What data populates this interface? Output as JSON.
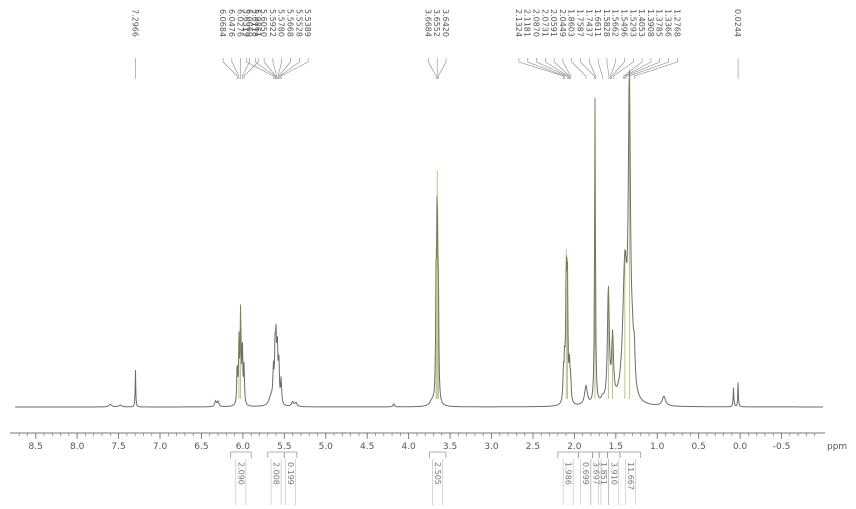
{
  "chart_data": {
    "type": "line",
    "title": "",
    "xlabel": "",
    "ylabel": "",
    "x_unit": "ppm",
    "xlim": [
      8.75,
      -1.0
    ],
    "x_reversed": true,
    "grid": false,
    "ticks": [
      8.5,
      8.0,
      7.5,
      7.0,
      6.5,
      6.0,
      5.5,
      5.0,
      4.5,
      4.0,
      3.5,
      3.0,
      2.5,
      2.0,
      1.5,
      1.0,
      0.5,
      0.0,
      -0.5
    ],
    "tick_labels": [
      "8.5",
      "8.0",
      "7.5",
      "7.0",
      "6.5",
      "6.0",
      "5.5",
      "5.0",
      "4.5",
      "4.0",
      "3.5",
      "3.0",
      "2.5",
      "2.0",
      "1.5",
      "1.0",
      "0.5",
      "0.0",
      "-0.5"
    ],
    "peak_labels": [
      {
        "group": "a",
        "values": [
          "7.2966"
        ]
      },
      {
        "group": "b",
        "values": [
          "6.0684",
          "6.0476",
          "6.0276",
          "6.0069",
          "5.9861"
        ]
      },
      {
        "group": "c",
        "values": [
          "5.6319",
          "5.6118",
          "5.6050",
          "5.5922",
          "5.5780",
          "5.5668",
          "5.5528",
          "5.5389"
        ]
      },
      {
        "group": "d",
        "values": [
          "3.6684",
          "3.6552",
          "3.6420"
        ]
      },
      {
        "group": "e",
        "values": [
          "2.1324",
          "2.1181",
          "2.0870",
          "2.0731",
          "2.0591",
          "2.0449",
          "1.8603",
          "1.7587",
          "1.7437",
          "1.6611",
          "1.5828",
          "1.5662",
          "1.5496",
          "1.5293",
          "1.4053",
          "1.3908",
          "1.3785",
          "1.3366",
          "1.2768"
        ]
      },
      {
        "group": "f",
        "values": [
          "0.0244"
        ]
      }
    ],
    "integrals": [
      {
        "from": 6.15,
        "to": 5.9,
        "value": "2.090"
      },
      {
        "from": 5.7,
        "to": 5.5,
        "value": "2.008"
      },
      {
        "from": 5.5,
        "to": 5.35,
        "value": "0.199"
      },
      {
        "from": 3.75,
        "to": 3.55,
        "value": "2.505"
      },
      {
        "from": 2.2,
        "to": 1.95,
        "value": "1.986"
      },
      {
        "from": 1.95,
        "to": 1.78,
        "value": "0.699"
      },
      {
        "from": 1.78,
        "to": 1.7,
        "value": "3.697"
      },
      {
        "from": 1.7,
        "to": 1.6,
        "value": "1.851"
      },
      {
        "from": 1.6,
        "to": 1.45,
        "value": "3.910"
      },
      {
        "from": 1.45,
        "to": 1.2,
        "value": "11.667"
      }
    ],
    "peaks": [
      {
        "shift": 7.6,
        "height": 0.008,
        "width": 0.02
      },
      {
        "shift": 7.48,
        "height": 0.006,
        "width": 0.02
      },
      {
        "shift": 7.2966,
        "height": 0.12,
        "width": 0.004
      },
      {
        "shift": 6.33,
        "height": 0.018,
        "width": 0.012
      },
      {
        "shift": 6.3,
        "height": 0.016,
        "width": 0.012
      },
      {
        "shift": 6.0684,
        "height": 0.13,
        "width": 0.006
      },
      {
        "shift": 6.0476,
        "height": 0.2,
        "width": 0.006
      },
      {
        "shift": 6.0276,
        "height": 0.3,
        "width": 0.006
      },
      {
        "shift": 6.0069,
        "height": 0.19,
        "width": 0.006
      },
      {
        "shift": 5.9861,
        "height": 0.12,
        "width": 0.006
      },
      {
        "shift": 5.66,
        "height": 0.03,
        "width": 0.03
      },
      {
        "shift": 5.6319,
        "height": 0.1,
        "width": 0.007
      },
      {
        "shift": 5.6118,
        "height": 0.16,
        "width": 0.007
      },
      {
        "shift": 5.6005,
        "height": 0.17,
        "width": 0.007
      },
      {
        "shift": 5.5851,
        "height": 0.18,
        "width": 0.007
      },
      {
        "shift": 5.5668,
        "height": 0.14,
        "width": 0.007
      },
      {
        "shift": 5.5389,
        "height": 0.08,
        "width": 0.007
      },
      {
        "shift": 5.4,
        "height": 0.015,
        "width": 0.015
      },
      {
        "shift": 5.36,
        "height": 0.012,
        "width": 0.015
      },
      {
        "shift": 4.18,
        "height": 0.01,
        "width": 0.01
      },
      {
        "shift": 3.72,
        "height": 0.015,
        "width": 0.03
      },
      {
        "shift": 3.6684,
        "height": 0.38,
        "width": 0.006
      },
      {
        "shift": 3.6552,
        "height": 0.63,
        "width": 0.006
      },
      {
        "shift": 3.642,
        "height": 0.36,
        "width": 0.006
      },
      {
        "shift": 2.1324,
        "height": 0.09,
        "width": 0.007
      },
      {
        "shift": 2.1181,
        "height": 0.12,
        "width": 0.007
      },
      {
        "shift": 2.0981,
        "height": 0.41,
        "width": 0.007
      },
      {
        "shift": 2.0843,
        "height": 0.38,
        "width": 0.007
      },
      {
        "shift": 2.0591,
        "height": 0.11,
        "width": 0.007
      },
      {
        "shift": 2.0449,
        "height": 0.07,
        "width": 0.007
      },
      {
        "shift": 1.8603,
        "height": 0.06,
        "width": 0.02
      },
      {
        "shift": 1.7512,
        "height": 0.97,
        "width": 0.006
      },
      {
        "shift": 1.6611,
        "height": 0.015,
        "width": 0.02
      },
      {
        "shift": 1.59,
        "height": 0.36,
        "width": 0.013
      },
      {
        "shift": 1.5393,
        "height": 0.2,
        "width": 0.013
      },
      {
        "shift": 1.3908,
        "height": 0.42,
        "width": 0.03
      },
      {
        "shift": 1.3366,
        "height": 0.95,
        "width": 0.015
      },
      {
        "shift": 1.3,
        "height": 0.12,
        "width": 0.02
      },
      {
        "shift": 1.2768,
        "height": 0.1,
        "width": 0.01
      },
      {
        "shift": 0.92,
        "height": 0.03,
        "width": 0.025
      },
      {
        "shift": 0.08,
        "height": 0.06,
        "width": 0.005
      },
      {
        "shift": 0.0244,
        "height": 0.085,
        "width": 0.004
      }
    ]
  },
  "colors": {
    "spectrum_line": "#6b6b6b",
    "peak_highlight": "#8a9a2a",
    "integral_line": "#999999",
    "axis": "#777777"
  }
}
